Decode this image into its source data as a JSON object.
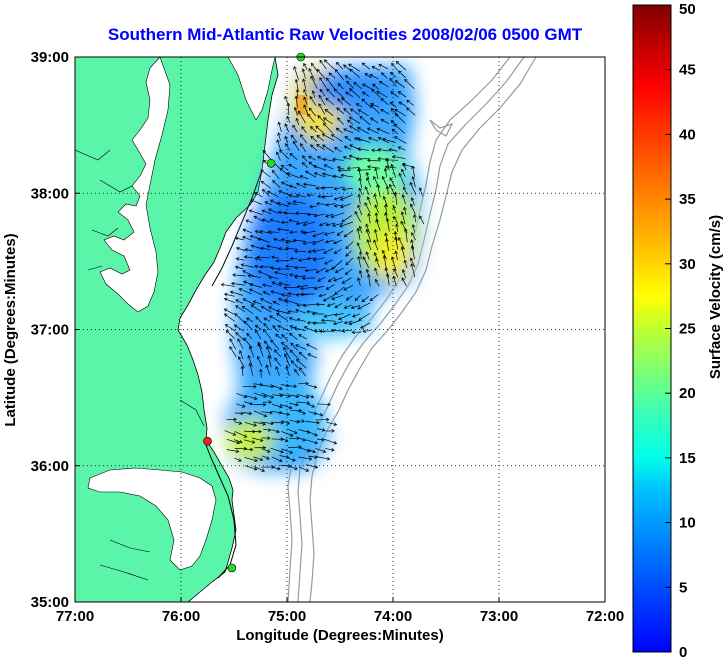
{
  "title": "Southern Mid-Atlantic Raw Velocities 2008/02/06 0500 GMT",
  "map": {
    "xlabel": "Longitude (Degrees:Minutes)",
    "ylabel": "Latitude (Degrees:Minutes)",
    "lon_range": [
      -77,
      -72
    ],
    "lat_range": [
      35,
      39
    ],
    "x_ticks": [
      {
        "value": -77,
        "label": "77:00"
      },
      {
        "value": -76,
        "label": "76:00"
      },
      {
        "value": -75,
        "label": "75:00"
      },
      {
        "value": -74,
        "label": "74:00"
      },
      {
        "value": -73,
        "label": "73:00"
      },
      {
        "value": -72,
        "label": "72:00"
      }
    ],
    "y_ticks": [
      {
        "value": 35,
        "label": "35:00"
      },
      {
        "value": 36,
        "label": "36:00"
      },
      {
        "value": 37,
        "label": "37:00"
      },
      {
        "value": 38,
        "label": "38:00"
      },
      {
        "value": 39,
        "label": "39:00"
      }
    ],
    "grid": "dotted",
    "land_color": "#5af5a8",
    "water_color": "#ffffff",
    "bathymetry_color": "#999999",
    "arrow_color": "#000000",
    "stations": [
      {
        "lon": -74.87,
        "lat": 39.0,
        "color": "#22dd22"
      },
      {
        "lon": -75.15,
        "lat": 38.22,
        "color": "#22dd22"
      },
      {
        "lon": -75.75,
        "lat": 36.18,
        "color": "#ee2020"
      },
      {
        "lon": -75.52,
        "lat": 35.25,
        "color": "#22dd22"
      }
    ]
  },
  "colorbar": {
    "label": "Surface Velocity (cm/s)",
    "colormap": "jet",
    "range": [
      0,
      50
    ],
    "ticks": [
      {
        "value": 0,
        "label": "0"
      },
      {
        "value": 5,
        "label": "5"
      },
      {
        "value": 10,
        "label": "10"
      },
      {
        "value": 15,
        "label": "15"
      },
      {
        "value": 20,
        "label": "20"
      },
      {
        "value": 25,
        "label": "25"
      },
      {
        "value": 30,
        "label": "30"
      },
      {
        "value": 35,
        "label": "35"
      },
      {
        "value": 40,
        "label": "40"
      },
      {
        "value": 45,
        "label": "45"
      },
      {
        "value": 50,
        "label": "50"
      }
    ]
  }
}
